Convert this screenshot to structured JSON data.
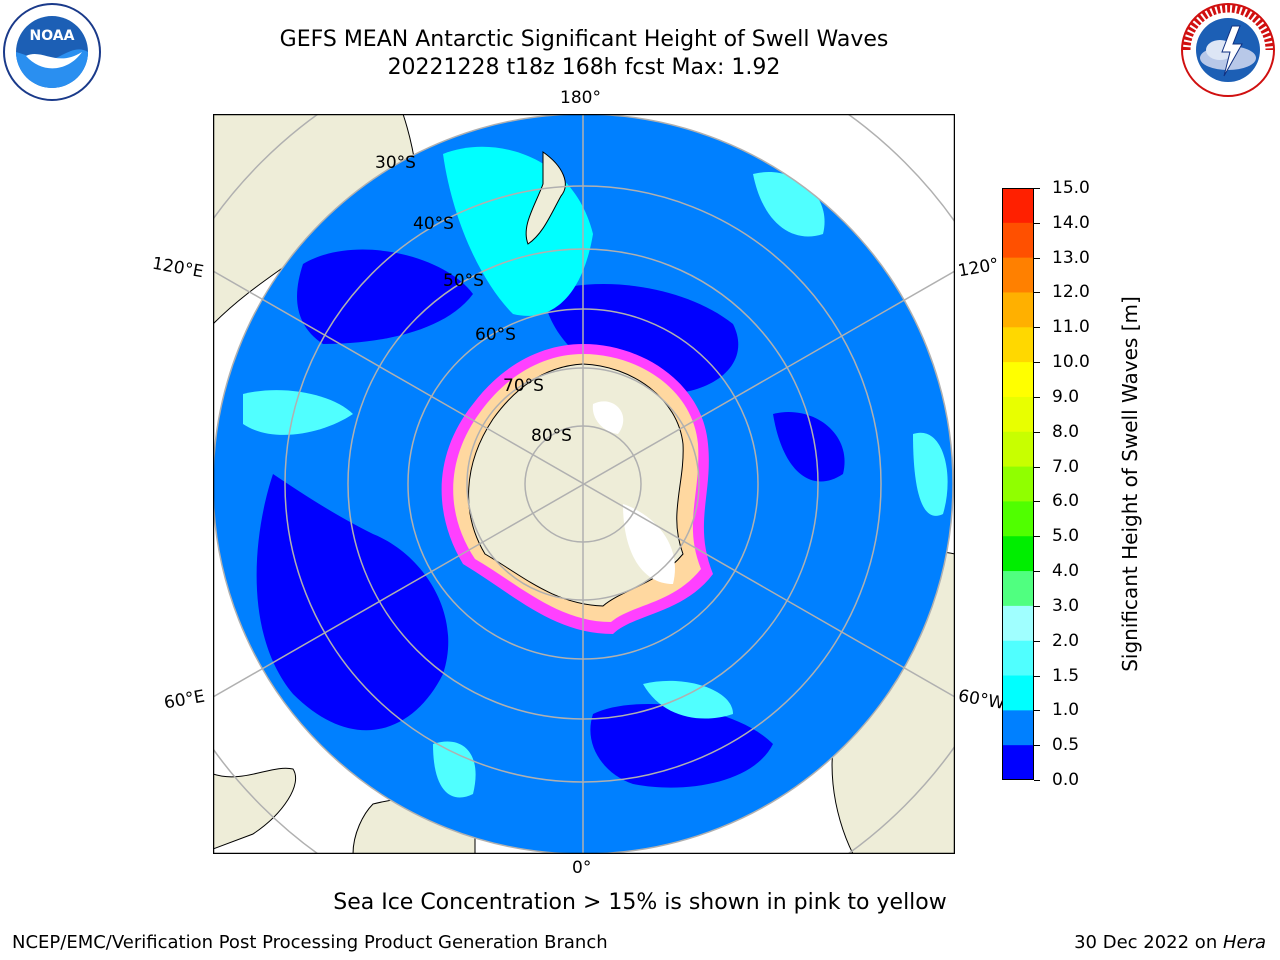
{
  "title": {
    "line1": "GEFS MEAN Antarctic Significant Height of Swell Waves",
    "line2": "20221228 t18z 168h fcst   Max: 1.92"
  },
  "logos": {
    "left": {
      "icon": "noaa-logo",
      "text": "NOAA"
    },
    "right": {
      "icon": "nws-logo",
      "text": "NATIONAL WEATHER SERVICE"
    }
  },
  "map": {
    "projection": "south-polar-stereographic",
    "longitude_labels": {
      "top": "180°",
      "bottom": "0°",
      "left_upper": "120°E",
      "left_lower": "60°E",
      "right_upper": "120°",
      "right_lower": "60°W"
    },
    "latitude_labels": [
      "30°S",
      "40°S",
      "50°S",
      "60°S",
      "70°S",
      "80°S"
    ],
    "colors": {
      "land": "#eeedd8",
      "ocean_main": "#0080ff",
      "ocean_low": "#0000ff",
      "ocean_mid": "#00ffff",
      "ice_edge": "#ff40ff",
      "grid": "#b0b0b0"
    }
  },
  "colorbar": {
    "label": "Significant Height of Swell Waves [m]",
    "ticks": [
      "15.0",
      "14.0",
      "13.0",
      "12.0",
      "11.0",
      "10.0",
      "9.0",
      "8.0",
      "7.0",
      "6.0",
      "5.0",
      "4.0",
      "3.0",
      "2.0",
      "1.5",
      "1.0",
      "0.5",
      "0.0"
    ],
    "colors": [
      "#ff0000",
      "#ff2000",
      "#ff5000",
      "#ff8000",
      "#ffb000",
      "#ffd800",
      "#ffff00",
      "#e8ff00",
      "#c8ff00",
      "#90ff00",
      "#50ff00",
      "#00ee00",
      "#50ff80",
      "#a0ffff",
      "#50ffff",
      "#00ffff",
      "#0080ff",
      "#0000ff"
    ]
  },
  "note": "Sea Ice Concentration > 15% is shown in pink to yellow",
  "footer": {
    "left": "NCEP/EMC/Verification Post Processing Product Generation Branch",
    "right_prefix": "30 Dec 2022 on ",
    "right_machine": "Hera"
  }
}
